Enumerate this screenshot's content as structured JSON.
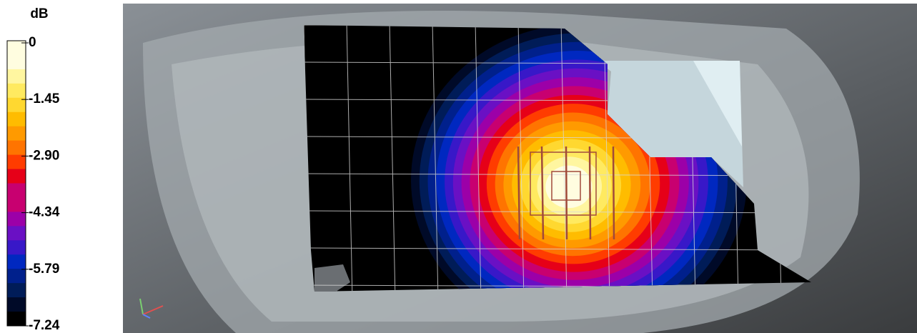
{
  "legend": {
    "title": "dB",
    "ticks": [
      "0",
      "-1.45",
      "-2.90",
      "-4.34",
      "-5.79",
      "-7.24"
    ]
  }
}
